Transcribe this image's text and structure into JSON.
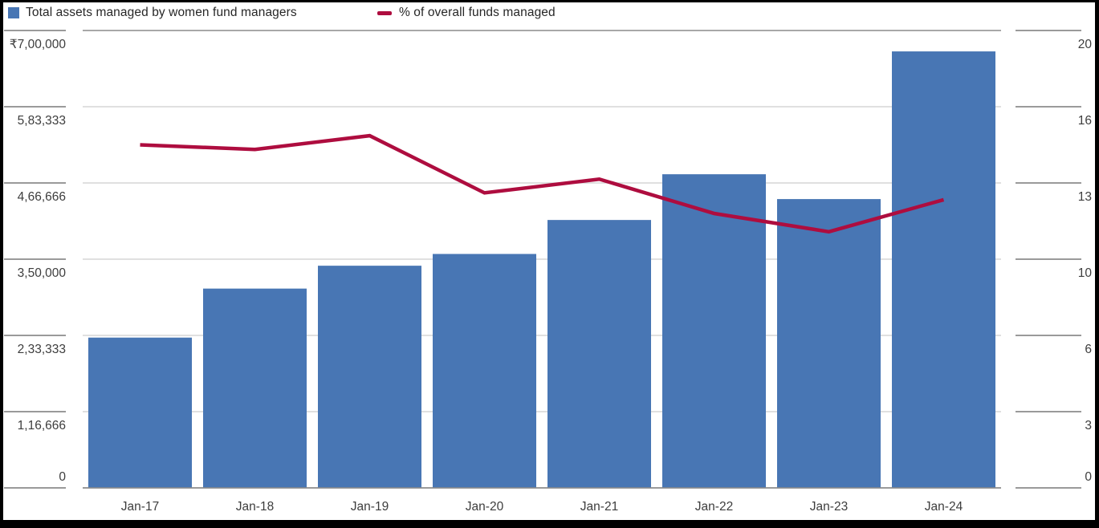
{
  "frame": {
    "border_color": "#000000",
    "panel_background": "#ffffff"
  },
  "legend": {
    "position": "top-left",
    "items": [
      {
        "label": "Total assets managed by women fund managers",
        "swatch": "square",
        "color": "#4876b4"
      },
      {
        "label": "% of overall funds managed",
        "swatch": "dash",
        "color": "#ae0d3f"
      }
    ]
  },
  "chart_data": {
    "type": "bar",
    "subtype": "combo-bar-line",
    "title": "",
    "categories": [
      "Jan-17",
      "Jan-18",
      "Jan-19",
      "Jan-20",
      "Jan-21",
      "Jan-22",
      "Jan-23",
      "Jan-24"
    ],
    "series": [
      {
        "name": "Total assets managed by women fund managers",
        "type": "bar",
        "axis": "left",
        "color": "#4876b4",
        "values": [
          230000,
          305000,
          340000,
          358000,
          410000,
          480000,
          442000,
          668000
        ]
      },
      {
        "name": "% of overall funds managed",
        "type": "line",
        "axis": "right",
        "color": "#ae0d3f",
        "values": [
          15.0,
          14.8,
          15.4,
          12.9,
          13.5,
          12.0,
          11.2,
          12.6
        ]
      }
    ],
    "left_axis": {
      "min": 0,
      "max": 700000,
      "tick_labels": [
        "₹7,00,000",
        "5,83,333",
        "4,66,666",
        "3,50,000",
        "2,33,333",
        "1,16,666",
        "0"
      ]
    },
    "right_axis": {
      "min": 0,
      "max": 20,
      "tick_labels": [
        "20",
        "16",
        "13",
        "10",
        "6",
        "3",
        "0"
      ]
    },
    "x_axis": {
      "tick_labels": [
        "Jan-17",
        "Jan-18",
        "Jan-19",
        "Jan-20",
        "Jan-21",
        "Jan-22",
        "Jan-23",
        "Jan-24"
      ]
    },
    "grid": "horizontal",
    "legend_position": "top-left"
  },
  "colors": {
    "grid_inner": "#d6d6d6",
    "grid_edge": "#8c8c8c",
    "side_tick": "#787878",
    "axis_text": "#3d3d3d"
  }
}
